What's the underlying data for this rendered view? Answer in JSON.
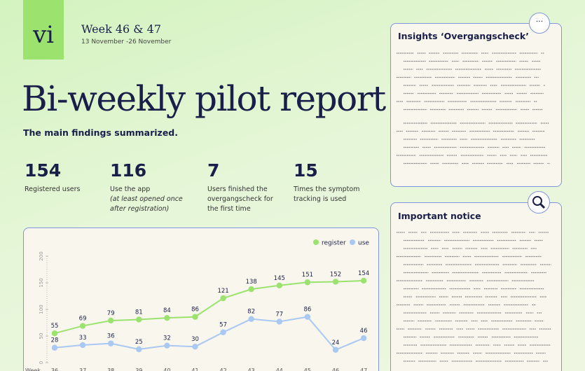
{
  "header": {
    "logo": "vi",
    "week": "Week 46 & 47",
    "dates": "13 November -26 November",
    "title": "Bi-weekly pilot report",
    "subtitle": "The main findings summarized."
  },
  "stats": [
    {
      "value": "154",
      "label": "Registered users"
    },
    {
      "value": "116",
      "label": "Use the app",
      "note": "(at least opened once after registration)"
    },
    {
      "value": "7",
      "label": "Users finished the overgangscheck for the first time"
    },
    {
      "value": "15",
      "label": "Times the symptom tracking is used"
    }
  ],
  "chart_data": {
    "type": "line",
    "x_label": "Week",
    "categories": [
      "36",
      "37",
      "38",
      "39",
      "40",
      "41",
      "42",
      "43",
      "44",
      "45",
      "46",
      "47"
    ],
    "series": [
      {
        "name": "register",
        "color": "#9be36e",
        "values": [
          55,
          69,
          79,
          81,
          84,
          86,
          121,
          138,
          145,
          151,
          152,
          154
        ]
      },
      {
        "name": "use",
        "color": "#a9c8f2",
        "values": [
          28,
          33,
          36,
          25,
          32,
          30,
          57,
          82,
          77,
          86,
          24,
          46
        ]
      }
    ],
    "ylim": [
      0,
      200
    ],
    "yticks": [
      0,
      50,
      100,
      150,
      200
    ],
    "legend": "top-right"
  },
  "panels": [
    {
      "title": "Insights ‘Overgangscheck’"
    },
    {
      "title": "Important notice"
    }
  ]
}
